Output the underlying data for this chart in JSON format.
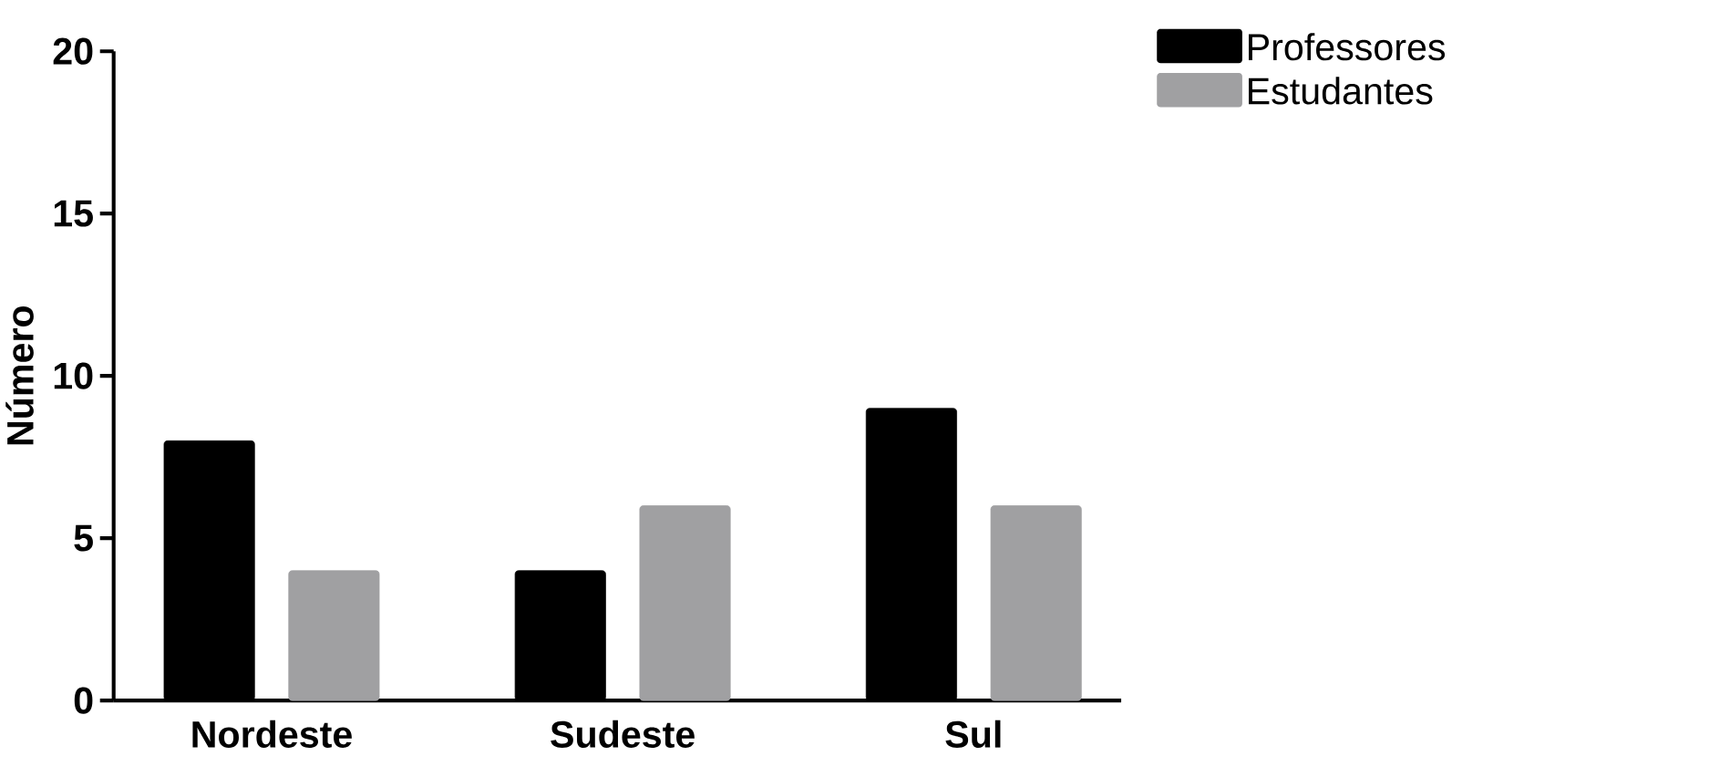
{
  "chart_data": {
    "type": "bar",
    "ylabel": "Número",
    "categories": [
      "Nordeste",
      "Sudeste",
      "Sul"
    ],
    "series": [
      {
        "name": "Professores",
        "color": "#000000",
        "values": [
          8,
          4,
          9
        ]
      },
      {
        "name": "Estudantes",
        "color": "#a0a0a2",
        "values": [
          4,
          6,
          6
        ]
      }
    ],
    "ylim": [
      0,
      20
    ],
    "yticks": [
      0,
      5,
      10,
      15,
      20
    ],
    "grid": false,
    "legend": "top right"
  }
}
